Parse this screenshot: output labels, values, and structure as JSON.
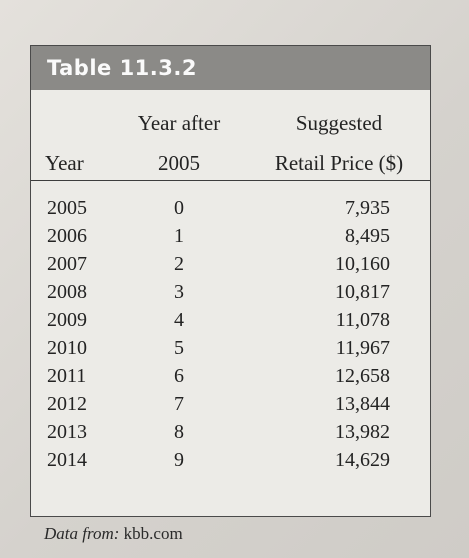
{
  "table": {
    "title": "Table 11.3.2",
    "headers": {
      "year": "Year",
      "after_line1": "Year after",
      "after_line2": "2005",
      "price_line1": "Suggested",
      "price_line2": "Retail Price ($)"
    },
    "rows": [
      {
        "year": "2005",
        "after": "0",
        "price": "7,935"
      },
      {
        "year": "2006",
        "after": "1",
        "price": "8,495"
      },
      {
        "year": "2007",
        "after": "2",
        "price": "10,160"
      },
      {
        "year": "2008",
        "after": "3",
        "price": "10,817"
      },
      {
        "year": "2009",
        "after": "4",
        "price": "11,078"
      },
      {
        "year": "2010",
        "after": "5",
        "price": "11,967"
      },
      {
        "year": "2011",
        "after": "6",
        "price": "12,658"
      },
      {
        "year": "2012",
        "after": "7",
        "price": "13,844"
      },
      {
        "year": "2013",
        "after": "8",
        "price": "13,982"
      },
      {
        "year": "2014",
        "after": "9",
        "price": "14,629"
      }
    ]
  },
  "source": {
    "label": "Data from:",
    "value": "kbb.com"
  }
}
